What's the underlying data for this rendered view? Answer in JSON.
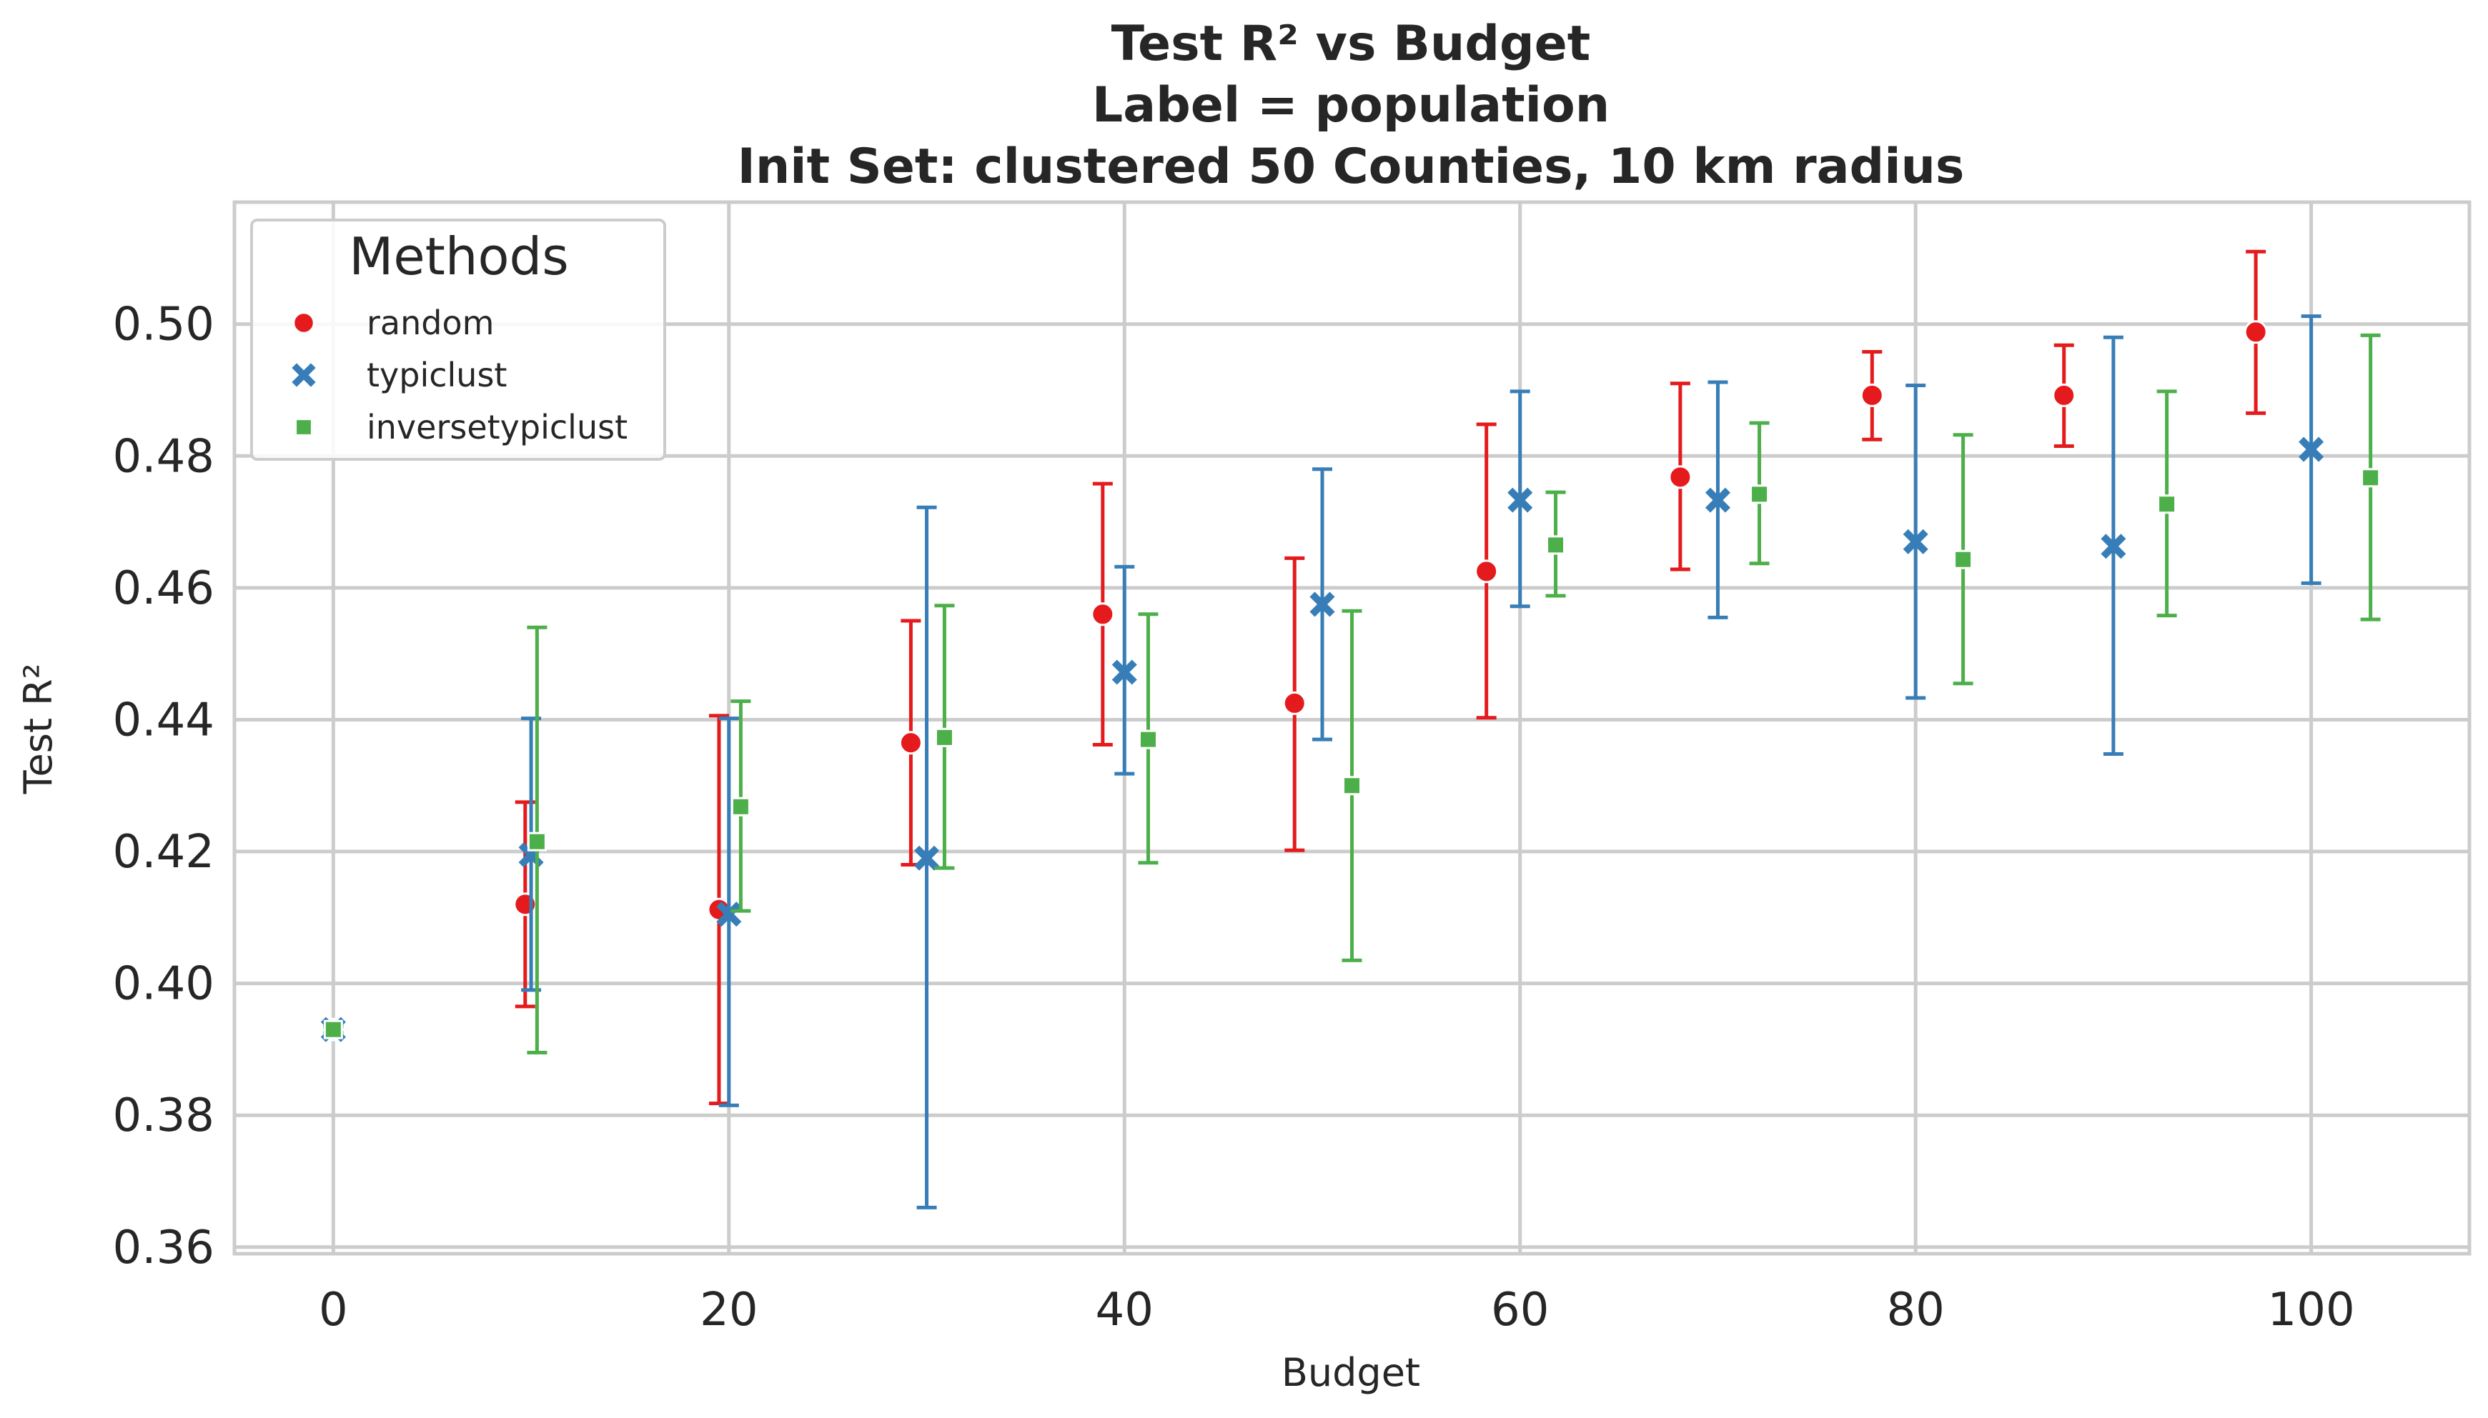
{
  "chart_data": {
    "type": "scatter",
    "title": [
      "Test R² vs Budget",
      "Label = population",
      "Init Set: clustered 50 Counties, 10 km radius"
    ],
    "xlabel": "Budget",
    "ylabel": "Test R²",
    "xlim": [
      -5,
      108
    ],
    "ylim": [
      0.359,
      0.5185
    ],
    "xticks": [
      0,
      20,
      40,
      60,
      80,
      100
    ],
    "xtick_labels": [
      "0",
      "20",
      "40",
      "60",
      "80",
      "100"
    ],
    "yticks": [
      0.36,
      0.38,
      0.4,
      0.42,
      0.44,
      0.46,
      0.48,
      0.5
    ],
    "ytick_labels": [
      "0.36",
      "0.38",
      "0.40",
      "0.42",
      "0.44",
      "0.46",
      "0.48",
      "0.50"
    ],
    "grid": true,
    "legend": {
      "title": "Methods",
      "placement": "top-left"
    },
    "series": [
      {
        "name": "random",
        "color": "#e41a1c",
        "marker": "circle",
        "points": [
          {
            "x": 0,
            "y": 0.393,
            "lo": 0.3925,
            "hi": 0.3935
          },
          {
            "x": 9.7,
            "y": 0.412,
            "lo": 0.3965,
            "hi": 0.4275
          },
          {
            "x": 19.5,
            "y": 0.4112,
            "lo": 0.3818,
            "hi": 0.4406
          },
          {
            "x": 29.2,
            "y": 0.4365,
            "lo": 0.418,
            "hi": 0.455
          },
          {
            "x": 38.9,
            "y": 0.456,
            "lo": 0.4362,
            "hi": 0.4758
          },
          {
            "x": 48.6,
            "y": 0.4425,
            "lo": 0.4202,
            "hi": 0.4645
          },
          {
            "x": 58.3,
            "y": 0.4625,
            "lo": 0.4403,
            "hi": 0.4848
          },
          {
            "x": 68.1,
            "y": 0.4768,
            "lo": 0.4628,
            "hi": 0.491
          },
          {
            "x": 77.8,
            "y": 0.4892,
            "lo": 0.4825,
            "hi": 0.4958
          },
          {
            "x": 87.5,
            "y": 0.4892,
            "lo": 0.4815,
            "hi": 0.4968
          },
          {
            "x": 97.2,
            "y": 0.4988,
            "lo": 0.4865,
            "hi": 0.511
          }
        ]
      },
      {
        "name": "typiclust",
        "color": "#377eb8",
        "marker": "x",
        "points": [
          {
            "x": 0,
            "y": 0.393,
            "lo": 0.3925,
            "hi": 0.3935
          },
          {
            "x": 10,
            "y": 0.4195,
            "lo": 0.399,
            "hi": 0.4402
          },
          {
            "x": 20,
            "y": 0.4105,
            "lo": 0.3815,
            "hi": 0.4402
          },
          {
            "x": 30,
            "y": 0.419,
            "lo": 0.366,
            "hi": 0.4722
          },
          {
            "x": 40,
            "y": 0.4472,
            "lo": 0.4318,
            "hi": 0.4632
          },
          {
            "x": 50,
            "y": 0.4575,
            "lo": 0.437,
            "hi": 0.478
          },
          {
            "x": 60,
            "y": 0.4733,
            "lo": 0.4572,
            "hi": 0.4898
          },
          {
            "x": 70,
            "y": 0.4733,
            "lo": 0.4555,
            "hi": 0.4912
          },
          {
            "x": 80,
            "y": 0.467,
            "lo": 0.4433,
            "hi": 0.4907
          },
          {
            "x": 90,
            "y": 0.4663,
            "lo": 0.4348,
            "hi": 0.498
          },
          {
            "x": 100,
            "y": 0.481,
            "lo": 0.4607,
            "hi": 0.5012
          }
        ]
      },
      {
        "name": "inversetypiclust",
        "color": "#4daf4a",
        "marker": "square",
        "points": [
          {
            "x": 0,
            "y": 0.393,
            "lo": 0.3925,
            "hi": 0.3935
          },
          {
            "x": 10.3,
            "y": 0.4215,
            "lo": 0.3895,
            "hi": 0.454
          },
          {
            "x": 20.6,
            "y": 0.4268,
            "lo": 0.411,
            "hi": 0.4428
          },
          {
            "x": 30.9,
            "y": 0.4373,
            "lo": 0.4175,
            "hi": 0.4573
          },
          {
            "x": 41.2,
            "y": 0.437,
            "lo": 0.4183,
            "hi": 0.456
          },
          {
            "x": 51.5,
            "y": 0.43,
            "lo": 0.4035,
            "hi": 0.4565
          },
          {
            "x": 61.8,
            "y": 0.4665,
            "lo": 0.4588,
            "hi": 0.4745
          },
          {
            "x": 72.1,
            "y": 0.4742,
            "lo": 0.4637,
            "hi": 0.485
          },
          {
            "x": 82.4,
            "y": 0.4643,
            "lo": 0.4455,
            "hi": 0.4832
          },
          {
            "x": 92.7,
            "y": 0.4727,
            "lo": 0.4558,
            "hi": 0.4898
          },
          {
            "x": 103,
            "y": 0.4767,
            "lo": 0.4552,
            "hi": 0.4983
          }
        ]
      }
    ]
  }
}
